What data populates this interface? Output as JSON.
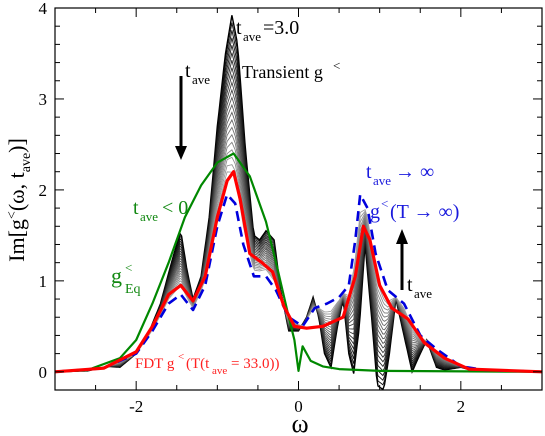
{
  "chart_data": {
    "type": "line",
    "xlabel": "ω",
    "ylabel": "Im[g<(ω, t_ave)]",
    "xlim": [
      -3,
      3
    ],
    "ylim": [
      -0.2,
      4
    ],
    "grid": false,
    "x_ticks": [
      -2,
      0,
      2
    ],
    "y_ticks": [
      0,
      1,
      2,
      3,
      4
    ],
    "x_tick_labels": [
      "-2",
      "0",
      "2"
    ],
    "y_tick_labels": [
      "0",
      "1",
      "2",
      "3",
      "4"
    ],
    "colors": {
      "transient": "#000000",
      "fdt": "#ff0000",
      "equilibrium": "#008800",
      "infinite": "#0000dd"
    },
    "transient_count": 22,
    "series": [
      {
        "name": "Transient g<",
        "kind": "transient-first",
        "points": [
          [
            -3,
            0
          ],
          [
            -2.6,
            0.01
          ],
          [
            -2.35,
            0.06
          ],
          [
            -2.2,
            0.05
          ],
          [
            -2.0,
            0.2
          ],
          [
            -1.85,
            0.42
          ],
          [
            -1.7,
            0.75
          ],
          [
            -1.55,
            1.25
          ],
          [
            -1.45,
            1.55
          ],
          [
            -1.38,
            1.15
          ],
          [
            -1.3,
            0.8
          ],
          [
            -1.2,
            1.05
          ],
          [
            -1.1,
            1.7
          ],
          [
            -1.0,
            2.7
          ],
          [
            -0.9,
            3.5
          ],
          [
            -0.82,
            3.92
          ],
          [
            -0.75,
            3.6
          ],
          [
            -0.65,
            2.4
          ],
          [
            -0.55,
            1.5
          ],
          [
            -0.48,
            1.45
          ],
          [
            -0.4,
            1.55
          ],
          [
            -0.3,
            1.45
          ],
          [
            -0.22,
            0.9
          ],
          [
            -0.12,
            0.45
          ],
          [
            0,
            0.45
          ],
          [
            0.1,
            0.6
          ],
          [
            0.18,
            0.82
          ],
          [
            0.25,
            0.6
          ],
          [
            0.32,
            0.2
          ],
          [
            0.4,
            0.05
          ],
          [
            0.48,
            0.5
          ],
          [
            0.55,
            0.8
          ],
          [
            0.62,
            0.2
          ],
          [
            0.68,
            -0.02
          ],
          [
            0.75,
            0.5
          ],
          [
            0.82,
            1.4
          ],
          [
            0.9,
            0.6
          ],
          [
            0.97,
            -0.15
          ],
          [
            1.05,
            -0.2
          ],
          [
            1.12,
            0.2
          ],
          [
            1.2,
            0.8
          ],
          [
            1.3,
            0.4
          ],
          [
            1.4,
            0.0
          ],
          [
            1.5,
            0.2
          ],
          [
            1.58,
            0.35
          ],
          [
            1.7,
            0.05
          ],
          [
            1.8,
            0.02
          ],
          [
            2.0,
            0.05
          ],
          [
            2.2,
            0.0
          ],
          [
            3,
            0
          ]
        ]
      },
      {
        "name": "",
        "kind": "infinite",
        "points": [
          [
            -3,
            0
          ],
          [
            -2.4,
            0.04
          ],
          [
            -2.0,
            0.2
          ],
          [
            -1.8,
            0.45
          ],
          [
            -1.6,
            0.75
          ],
          [
            -1.45,
            0.85
          ],
          [
            -1.3,
            0.68
          ],
          [
            -1.15,
            0.95
          ],
          [
            -1.0,
            1.6
          ],
          [
            -0.88,
            1.95
          ],
          [
            -0.78,
            1.85
          ],
          [
            -0.68,
            1.4
          ],
          [
            -0.55,
            1.05
          ],
          [
            -0.4,
            1.05
          ],
          [
            -0.28,
            0.9
          ],
          [
            -0.12,
            0.6
          ],
          [
            0.05,
            0.5
          ],
          [
            0.2,
            0.7
          ],
          [
            0.35,
            0.75
          ],
          [
            0.5,
            0.82
          ],
          [
            0.62,
            0.95
          ],
          [
            0.7,
            1.45
          ],
          [
            0.76,
            1.95
          ],
          [
            0.85,
            1.8
          ],
          [
            0.95,
            1.3
          ],
          [
            1.1,
            0.9
          ],
          [
            1.3,
            0.75
          ],
          [
            1.5,
            0.4
          ],
          [
            1.7,
            0.25
          ],
          [
            2.0,
            0.06
          ],
          [
            2.3,
            0.02
          ],
          [
            3,
            0
          ]
        ]
      },
      {
        "name": "FDT g<(T(t_ave = 33.0))",
        "kind": "fdt",
        "points": [
          [
            -3,
            0
          ],
          [
            -2.4,
            0.04
          ],
          [
            -2.0,
            0.22
          ],
          [
            -1.8,
            0.5
          ],
          [
            -1.6,
            0.85
          ],
          [
            -1.45,
            0.95
          ],
          [
            -1.3,
            0.78
          ],
          [
            -1.15,
            1.05
          ],
          [
            -1.0,
            1.7
          ],
          [
            -0.88,
            2.1
          ],
          [
            -0.8,
            2.2
          ],
          [
            -0.72,
            1.9
          ],
          [
            -0.6,
            1.3
          ],
          [
            -0.45,
            1.2
          ],
          [
            -0.32,
            1.1
          ],
          [
            -0.18,
            0.72
          ],
          [
            -0.05,
            0.5
          ],
          [
            0.1,
            0.48
          ],
          [
            0.3,
            0.5
          ],
          [
            0.55,
            0.6
          ],
          [
            0.7,
            1.05
          ],
          [
            0.8,
            1.6
          ],
          [
            0.88,
            1.45
          ],
          [
            1.0,
            0.95
          ],
          [
            1.15,
            0.7
          ],
          [
            1.35,
            0.58
          ],
          [
            1.55,
            0.32
          ],
          [
            1.8,
            0.15
          ],
          [
            2.1,
            0.03
          ],
          [
            3,
            0
          ]
        ]
      },
      {
        "name": "g<_Eq",
        "kind": "equilibrium",
        "points": [
          [
            -3,
            0
          ],
          [
            -2.6,
            0.02
          ],
          [
            -2.2,
            0.15
          ],
          [
            -2.0,
            0.35
          ],
          [
            -1.8,
            0.75
          ],
          [
            -1.6,
            1.2
          ],
          [
            -1.4,
            1.7
          ],
          [
            -1.2,
            2.05
          ],
          [
            -1.0,
            2.3
          ],
          [
            -0.8,
            2.4
          ],
          [
            -0.6,
            2.15
          ],
          [
            -0.4,
            1.65
          ],
          [
            -0.25,
            1.1
          ],
          [
            -0.12,
            0.6
          ],
          [
            -0.05,
            0.35
          ],
          [
            0,
            0.01
          ],
          [
            0.05,
            0.28
          ],
          [
            0.15,
            0.12
          ],
          [
            0.3,
            0.06
          ],
          [
            0.5,
            0.03
          ],
          [
            1.0,
            0.01
          ],
          [
            3,
            0
          ]
        ]
      }
    ],
    "annotations": {
      "t_ave_main": "t_ave=3.0",
      "transient": "Transient g<",
      "t_ave_arrow_down": "t_ave",
      "t_ave_lt0": "t_ave < 0",
      "t_ave_inf": "t_ave → ∞",
      "g_T_inf": "g<(T → ∞)",
      "t_ave_arrow_up": "t_ave",
      "g_eq": "g<_Eq",
      "fdt": "FDT g<(T(t_ave = 33.0))"
    }
  }
}
